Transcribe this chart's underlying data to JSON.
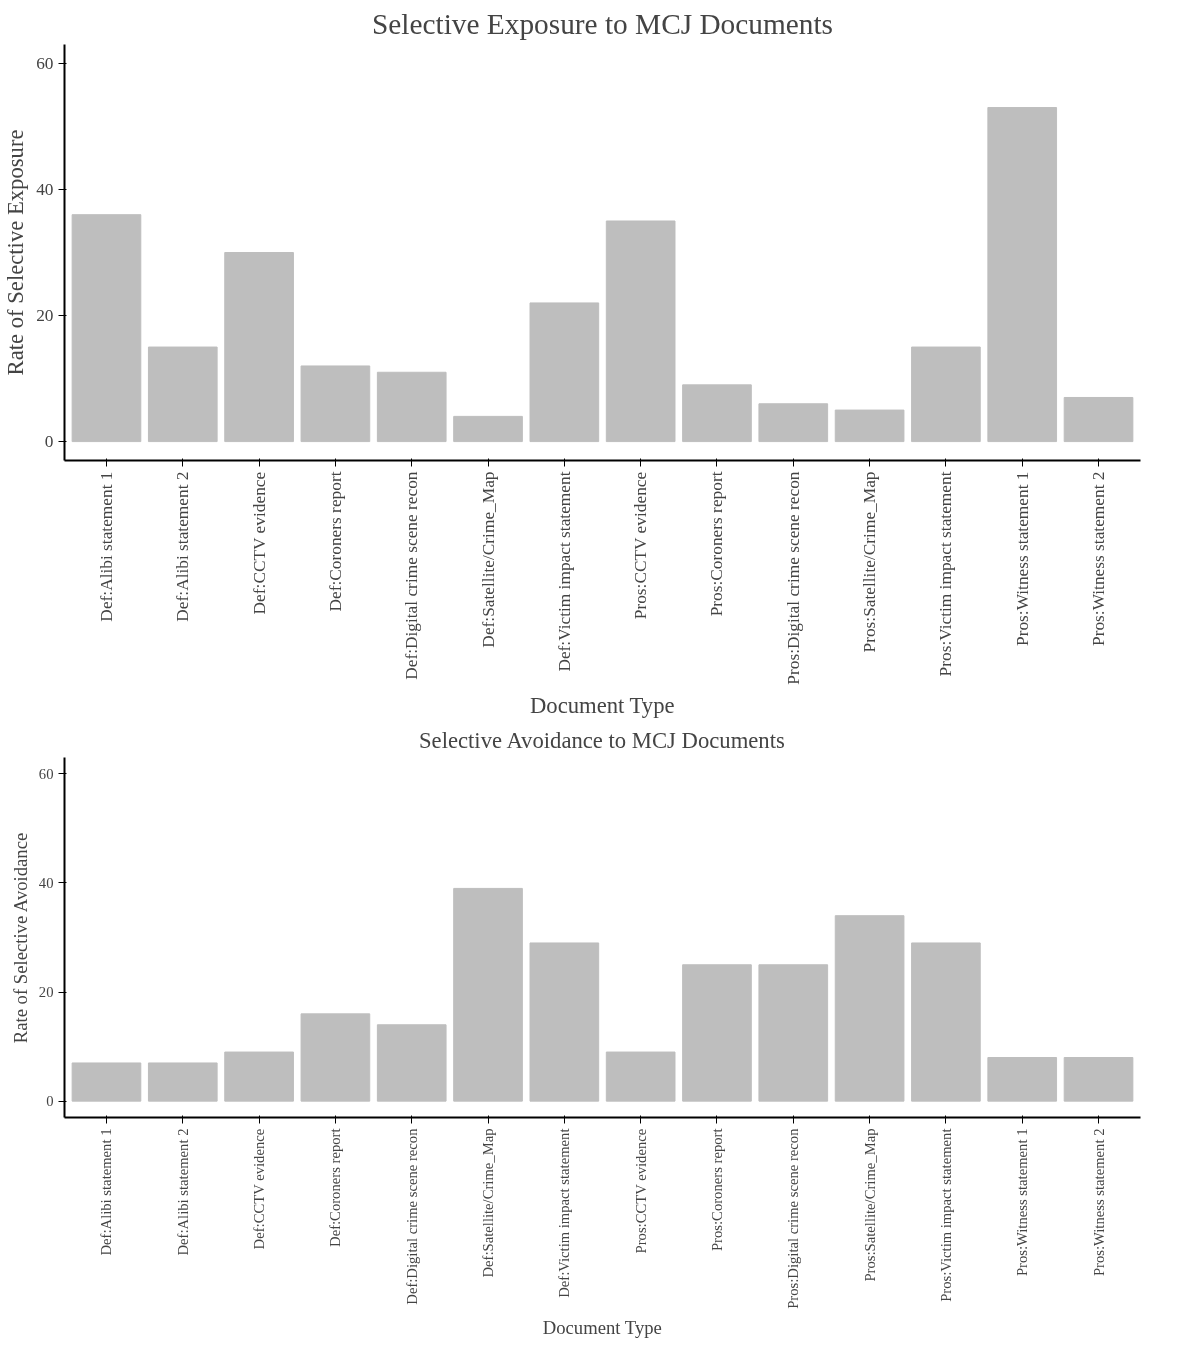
{
  "chart_data": [
    {
      "type": "bar",
      "title": "Selective Exposure to MCJ Documents",
      "xlabel": "Document Type",
      "ylabel": "Rate of Selective Exposure",
      "categories": [
        "Def:Alibi statement 1",
        "Def:Alibi statement 2",
        "Def:CCTV evidence",
        "Def:Coroners report",
        "Def:Digital crime scene recon",
        "Def:Satellite/Crime_Map",
        "Def:Victim impact statement",
        "Pros:CCTV evidence",
        "Pros:Coroners report",
        "Pros:Digital crime scene recon",
        "Pros:Satellite/Crime_Map",
        "Pros:Victim impact statement",
        "Pros:Witness statement 1",
        "Pros:Witness statement 2"
      ],
      "values": [
        36,
        15,
        30,
        12,
        11,
        4,
        22,
        35,
        9,
        6,
        5,
        15,
        53,
        7
      ],
      "color": "#bebebe",
      "ylim": [
        -3,
        63
      ],
      "yticks": [
        0,
        20,
        40,
        60
      ],
      "grid": false
    },
    {
      "type": "bar",
      "title": "Selective Avoidance to MCJ Documents",
      "xlabel": "Document Type",
      "ylabel": "Rate of Selective Avoidance",
      "categories": [
        "Def:Alibi statement 1",
        "Def:Alibi statement 2",
        "Def:CCTV evidence",
        "Def:Coroners report",
        "Def:Digital crime scene recon",
        "Def:Satellite/Crime_Map",
        "Def:Victim impact statement",
        "Pros:CCTV evidence",
        "Pros:Coroners report",
        "Pros:Digital crime scene recon",
        "Pros:Satellite/Crime_Map",
        "Pros:Victim impact statement",
        "Pros:Witness statement 1",
        "Pros:Witness statement 2"
      ],
      "values": [
        7,
        7,
        9,
        16,
        14,
        39,
        29,
        9,
        25,
        25,
        34,
        29,
        8,
        8
      ],
      "color": "#bebebe",
      "ylim": [
        -3,
        63
      ],
      "yticks": [
        0,
        20,
        40,
        60
      ],
      "grid": false
    }
  ]
}
